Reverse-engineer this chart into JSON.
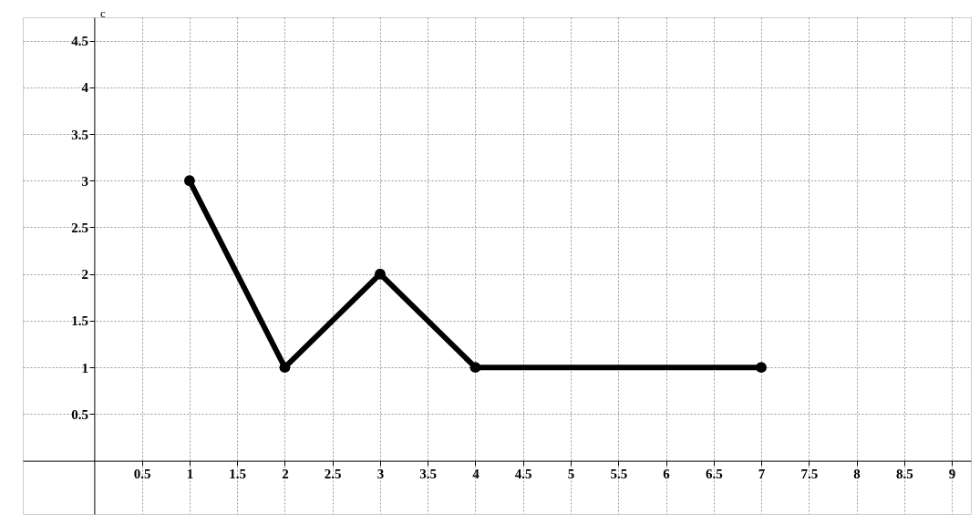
{
  "chart_data": {
    "type": "line",
    "ylabel": "c",
    "x": [
      1,
      2,
      3,
      4,
      7
    ],
    "series": [
      {
        "color": "#000000",
        "values": [
          3,
          1,
          2,
          1,
          1
        ]
      }
    ],
    "xlim": [
      -0.75,
      9.2
    ],
    "ylim": [
      -0.57,
      4.75
    ],
    "xticks": [
      0.5,
      1,
      1.5,
      2,
      2.5,
      3,
      3.5,
      4,
      4.5,
      5,
      5.5,
      6,
      6.5,
      7,
      7.5,
      8,
      8.5,
      9
    ],
    "yticks": [
      0.5,
      1,
      1.5,
      2,
      2.5,
      3,
      3.5,
      4,
      4.5
    ],
    "grid": true,
    "marker": "circle",
    "line_style": "solid",
    "legend": false
  }
}
